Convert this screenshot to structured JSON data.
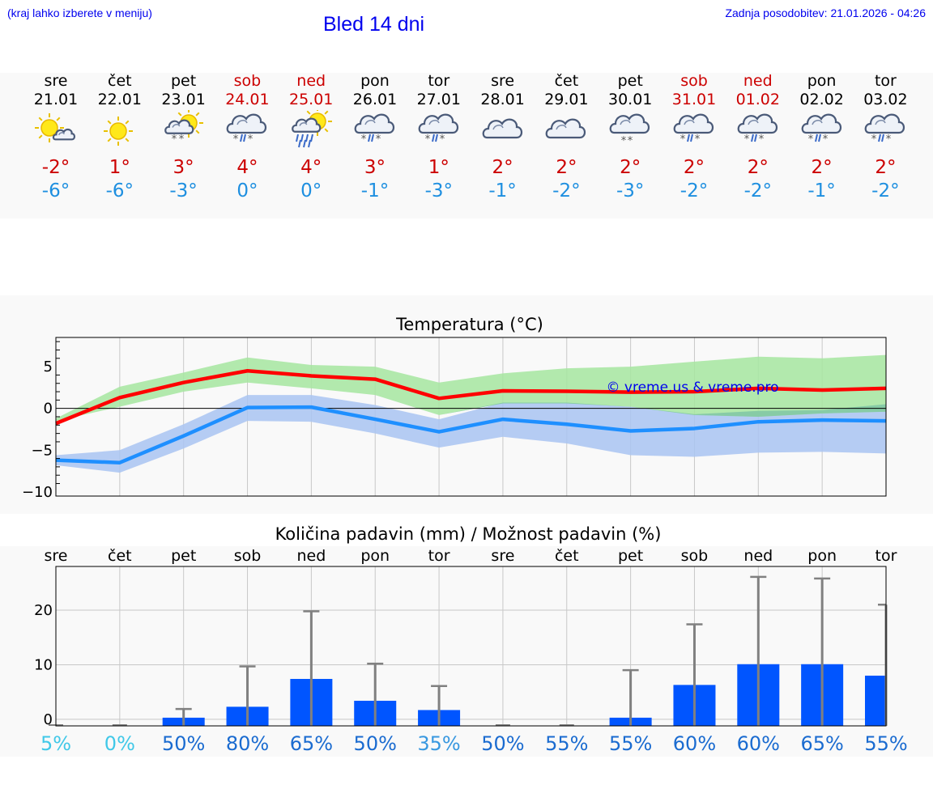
{
  "header": {
    "note": "(kraj lahko izberete v meniju)",
    "title": "Bled 14 dni",
    "update": "Zadnja posodobitev: 21.01.2026 - 04:26"
  },
  "days": [
    {
      "name": "sre",
      "date": "21.01",
      "weekend": false,
      "icon": "sun-cloud-icon",
      "tmax": "-2°",
      "tmin": "-6°"
    },
    {
      "name": "čet",
      "date": "22.01",
      "weekend": false,
      "icon": "sun-icon",
      "tmax": "1°",
      "tmin": "-6°"
    },
    {
      "name": "pet",
      "date": "23.01",
      "weekend": false,
      "icon": "sun-cloud-snow-icon",
      "tmax": "3°",
      "tmin": "-3°"
    },
    {
      "name": "sob",
      "date": "24.01",
      "weekend": true,
      "icon": "cloud-sleet-icon",
      "tmax": "4°",
      "tmin": "0°"
    },
    {
      "name": "ned",
      "date": "25.01",
      "weekend": true,
      "icon": "sun-cloud-rain-icon",
      "tmax": "4°",
      "tmin": "0°"
    },
    {
      "name": "pon",
      "date": "26.01",
      "weekend": false,
      "icon": "cloud-sleet-icon",
      "tmax": "3°",
      "tmin": "-1°"
    },
    {
      "name": "tor",
      "date": "27.01",
      "weekend": false,
      "icon": "cloud-sleet-icon",
      "tmax": "1°",
      "tmin": "-3°"
    },
    {
      "name": "sre",
      "date": "28.01",
      "weekend": false,
      "icon": "cloud-icon",
      "tmax": "2°",
      "tmin": "-1°"
    },
    {
      "name": "čet",
      "date": "29.01",
      "weekend": false,
      "icon": "cloud-icon",
      "tmax": "2°",
      "tmin": "-2°"
    },
    {
      "name": "pet",
      "date": "30.01",
      "weekend": false,
      "icon": "cloud-snow-icon",
      "tmax": "2°",
      "tmin": "-3°"
    },
    {
      "name": "sob",
      "date": "31.01",
      "weekend": true,
      "icon": "cloud-sleet-icon",
      "tmax": "2°",
      "tmin": "-2°"
    },
    {
      "name": "ned",
      "date": "01.02",
      "weekend": true,
      "icon": "cloud-sleet-icon",
      "tmax": "2°",
      "tmin": "-2°"
    },
    {
      "name": "pon",
      "date": "02.02",
      "weekend": false,
      "icon": "cloud-sleet-icon",
      "tmax": "2°",
      "tmin": "-1°"
    },
    {
      "name": "tor",
      "date": "03.02",
      "weekend": false,
      "icon": "cloud-sleet-icon",
      "tmax": "2°",
      "tmin": "-2°"
    }
  ],
  "colors": {
    "max": "#ff0000",
    "min": "#1e8fff",
    "max_band": "#a6e6a0",
    "min_band": "#a9c4f2",
    "overlap": "#7cc3a4",
    "bar": "#0055ff",
    "err": "#808080"
  },
  "chart_data": [
    {
      "type": "line",
      "title": "Temperatura (°C)",
      "watermark": "© vreme.us & vreme.pro",
      "ylim": [
        -10.5,
        8.5
      ],
      "yticks": [
        5,
        0,
        -5,
        -10
      ],
      "ytick_labels": [
        "5",
        "0",
        "−5",
        "−10"
      ],
      "x": [
        0,
        1,
        2,
        3,
        4,
        5,
        6,
        7,
        8,
        9,
        10,
        11,
        12,
        13
      ],
      "series": [
        {
          "name": "max",
          "values": [
            -1.8,
            1.3,
            3.1,
            4.5,
            3.9,
            3.5,
            1.2,
            2.1,
            2.05,
            1.95,
            2.0,
            2.4,
            2.2,
            2.4
          ]
        },
        {
          "name": "min",
          "values": [
            -6.2,
            -6.5,
            -3.3,
            0.1,
            0.15,
            -1.3,
            -2.8,
            -1.3,
            -1.9,
            -2.7,
            -2.4,
            -1.6,
            -1.4,
            -1.5
          ]
        }
      ],
      "max_band_low": [
        -1.5,
        0.2,
        2.0,
        3.1,
        2.4,
        1.6,
        -0.8,
        0.6,
        0.6,
        0.2,
        -0.8,
        -1.0,
        -0.6,
        -0.4
      ],
      "max_band_high": [
        -1.2,
        2.6,
        4.3,
        6.1,
        5.2,
        5.0,
        3.1,
        4.2,
        4.8,
        5.0,
        5.6,
        6.2,
        6.0,
        6.4
      ],
      "min_band_low": [
        -6.8,
        -7.7,
        -4.8,
        -1.5,
        -1.6,
        -3.0,
        -4.7,
        -3.4,
        -4.2,
        -5.6,
        -5.8,
        -5.3,
        -5.2,
        -5.4
      ],
      "min_band_high": [
        -5.6,
        -5.0,
        -1.9,
        1.6,
        1.6,
        0.4,
        -1.3,
        0.7,
        0.7,
        0.2,
        -0.7,
        -0.3,
        -0.2,
        0.5
      ]
    },
    {
      "type": "bar",
      "title": "Količina padavin (mm) / Možnost padavin (%)",
      "categories": [
        "sre",
        "čet",
        "pet",
        "sob",
        "ned",
        "pon",
        "tor",
        "sre",
        "čet",
        "pet",
        "sob",
        "ned",
        "pon",
        "tor"
      ],
      "ylim": [
        -1.2,
        28
      ],
      "yticks": [
        20,
        10,
        0
      ],
      "ytick_labels": [
        "20",
        "10",
        "0"
      ],
      "values": [
        0,
        0,
        0.3,
        2.3,
        7.4,
        3.4,
        1.7,
        0,
        0,
        0.3,
        6.3,
        10.1,
        10.1,
        8.0
      ],
      "err_high": [
        0,
        0,
        1.9,
        9.7,
        19.8,
        10.2,
        6.1,
        0,
        0,
        9.0,
        17.4,
        26.1,
        25.8,
        21.0
      ],
      "probability": [
        "5%",
        "0%",
        "50%",
        "80%",
        "65%",
        "50%",
        "35%",
        "50%",
        "55%",
        "55%",
        "60%",
        "60%",
        "65%",
        "55%"
      ],
      "probability_colors": [
        "#40c8e8",
        "#40c8e8",
        "#1a6bd0",
        "#1a6bd0",
        "#1a6bd0",
        "#1a6bd0",
        "#3898e0",
        "#1a6bd0",
        "#1a6bd0",
        "#1a6bd0",
        "#1a6bd0",
        "#1a6bd0",
        "#1a6bd0",
        "#1a6bd0"
      ]
    }
  ]
}
